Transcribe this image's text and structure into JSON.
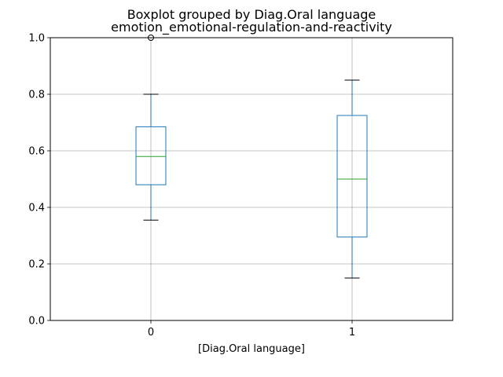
{
  "chart_data": {
    "type": "boxplot",
    "title": "Boxplot grouped by Diag.Oral language",
    "subtitle": "emotion_emotional-regulation-and-reactivity",
    "xlabel": "[Diag.Oral language]",
    "ylabel": "",
    "ylim": [
      0.0,
      1.0
    ],
    "grid": true,
    "yticks": [
      "0.0",
      "0.2",
      "0.4",
      "0.6",
      "0.8",
      "1.0"
    ],
    "categories": [
      "0",
      "1"
    ],
    "boxes": [
      {
        "category": "0",
        "whisker_low": 0.355,
        "q1": 0.48,
        "median": 0.58,
        "q3": 0.685,
        "whisker_high": 0.8,
        "outliers": [
          1.0
        ]
      },
      {
        "category": "1",
        "whisker_low": 0.15,
        "q1": 0.295,
        "median": 0.5,
        "q3": 0.725,
        "whisker_high": 0.85,
        "outliers": []
      }
    ],
    "colors": {
      "box": "#1f77b4",
      "median": "#2ca02c",
      "cap": "#000000",
      "grid": "#b0b0b0",
      "axes": "#000000"
    }
  }
}
